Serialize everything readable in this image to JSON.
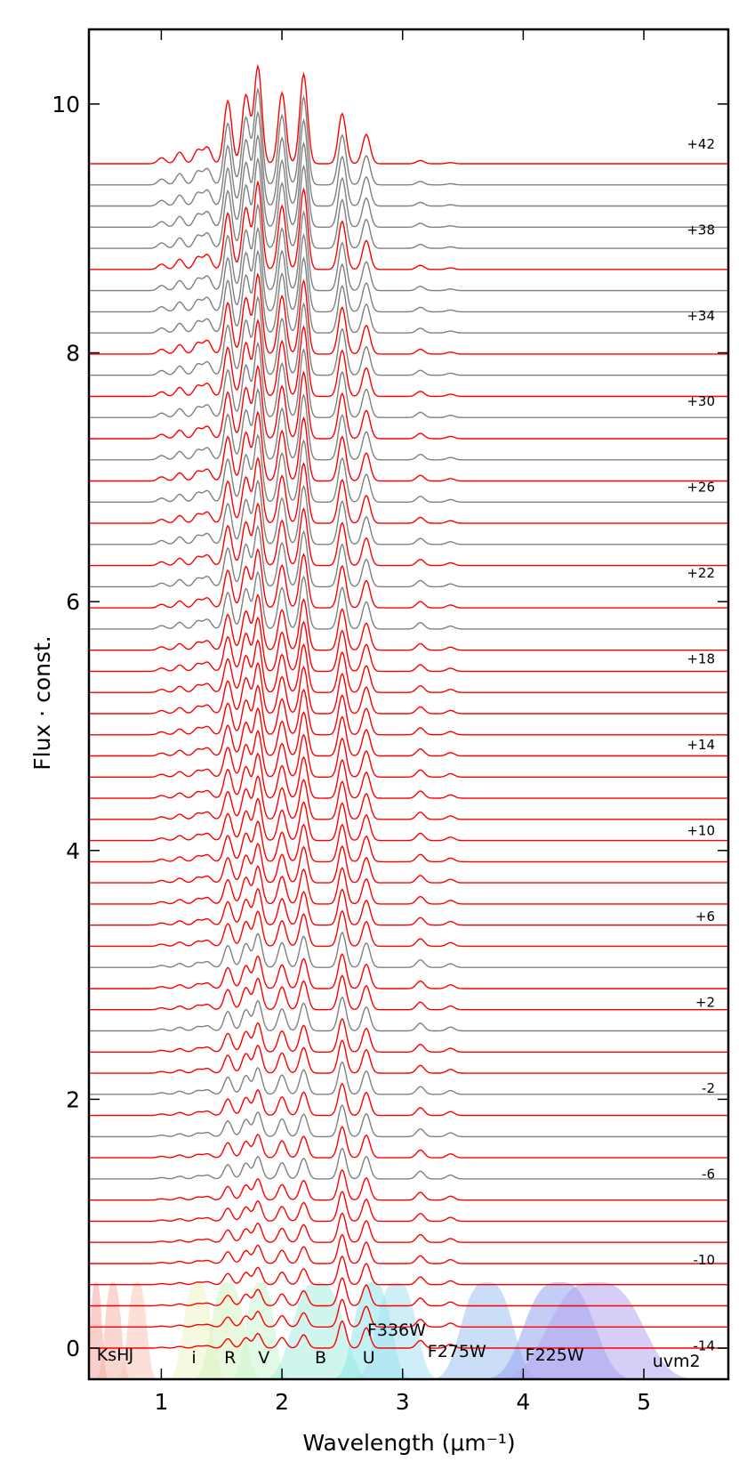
{
  "chart_data": {
    "type": "line",
    "title": "",
    "xlabel": "Wavelength (μm⁻¹)",
    "ylabel": "Flux · const.",
    "xlim": [
      0.4,
      5.7
    ],
    "ylim": [
      -0.25,
      10.6
    ],
    "xticks": [
      1,
      2,
      3,
      4,
      5
    ],
    "yticks": [
      0,
      2,
      4,
      6,
      8,
      10
    ],
    "series_count": 57,
    "series_spacing": 0.17,
    "series_colors": {
      "highlight": "#ff0000",
      "normal": "#808080"
    },
    "highlighted_series_indices": [
      0,
      1,
      2,
      3,
      4,
      5,
      6,
      7,
      9,
      11,
      13,
      14,
      16,
      17,
      19,
      20,
      21,
      22,
      23,
      24,
      25,
      26,
      27,
      28,
      29,
      30,
      31,
      32,
      33,
      35,
      37,
      39,
      41,
      43,
      45,
      47,
      51,
      56
    ],
    "phase_labels": [
      "+42",
      "+38",
      "+34",
      "+30",
      "+26",
      "+22",
      "+18",
      "+14",
      "+10",
      "+6",
      "+2",
      "-2",
      "-6",
      "-10",
      "-14"
    ],
    "phase_label_offsets": [
      9.6,
      8.91,
      8.22,
      7.53,
      6.84,
      6.15,
      5.46,
      4.77,
      4.08,
      3.39,
      2.7,
      2.01,
      1.32,
      0.63,
      -0.06
    ],
    "filter_bands": [
      {
        "label": "Ks",
        "center": 0.46,
        "width": 0.05,
        "color": "#f4a6a0"
      },
      {
        "label": "H",
        "center": 0.6,
        "width": 0.07,
        "color": "#f6b5a9"
      },
      {
        "label": "J",
        "center": 0.8,
        "width": 0.08,
        "color": "#f9c4b5"
      },
      {
        "label": "i",
        "center": 1.3,
        "width": 0.12,
        "color": "#e9f5c5"
      },
      {
        "label": "R",
        "center": 1.55,
        "width": 0.14,
        "color": "#d6f2c0"
      },
      {
        "label": "V",
        "center": 1.82,
        "width": 0.12,
        "color": "#c8f5d0"
      },
      {
        "label": "B",
        "center": 2.3,
        "width": 0.22,
        "color": "#a5efe0"
      },
      {
        "label": "U",
        "center": 2.75,
        "width": 0.16,
        "color": "#8ee6ea"
      },
      {
        "label": "F336W",
        "center": 2.95,
        "width": 0.17,
        "color": "#a8e2f2"
      },
      {
        "label": "F275W",
        "center": 3.7,
        "width": 0.22,
        "color": "#9fc2f2"
      },
      {
        "label": "F225W",
        "center": 4.3,
        "width": 0.3,
        "color": "#93a4ef"
      },
      {
        "label": "uvm2",
        "center": 4.6,
        "width": 0.4,
        "color": "#b4a5f0"
      }
    ],
    "band_label_positions": [
      {
        "label": "KsH",
        "x": 0.6,
        "y": -0.1
      },
      {
        "label": "J",
        "x": 0.75,
        "y": -0.1
      },
      {
        "label": "i",
        "x": 1.27,
        "y": -0.12
      },
      {
        "label": "R",
        "x": 1.57,
        "y": -0.12
      },
      {
        "label": "V",
        "x": 1.85,
        "y": -0.12
      },
      {
        "label": "B",
        "x": 2.32,
        "y": -0.12
      },
      {
        "label": "U",
        "x": 2.72,
        "y": -0.12
      },
      {
        "label": "F336W",
        "x": 2.95,
        "y": 0.1
      },
      {
        "label": "F275W",
        "x": 3.45,
        "y": -0.07
      },
      {
        "label": "F225W",
        "x": 4.26,
        "y": -0.1
      },
      {
        "label": "uvm2",
        "x": 5.27,
        "y": -0.15
      }
    ]
  }
}
